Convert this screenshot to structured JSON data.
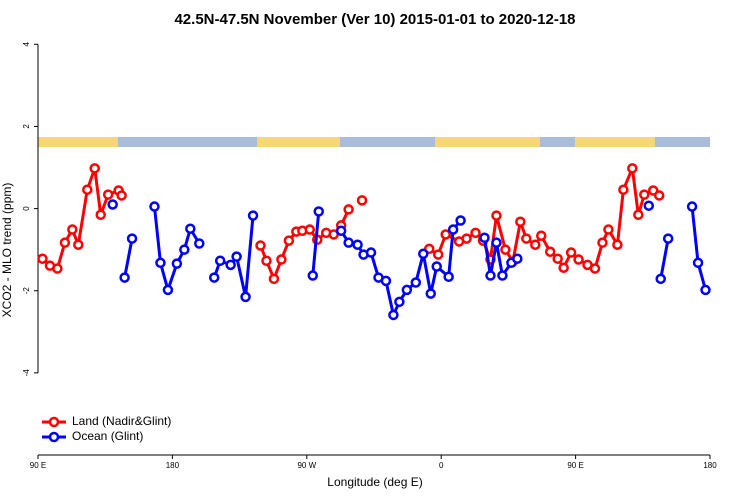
{
  "chart_data": {
    "type": "line",
    "title": "42.5N-47.5N November (Ver 10)   2015-01-01 to 2020-12-18",
    "x_label": "Longitude (deg E)",
    "y_label": "XCO2 - MLO trend (ppm)",
    "xlim": [
      90,
      540
    ],
    "ylim": [
      -6,
      4.3
    ],
    "xticks": [
      {
        "value": 90,
        "label": "90 E"
      },
      180,
      {
        "value": 270,
        "label": "90 W"
      },
      {
        "value": 360,
        "label": "0"
      },
      {
        "value": 450,
        "label": "90 E"
      },
      {
        "value": 540,
        "label": "180"
      }
    ],
    "yticks": [
      -4,
      -2,
      0,
      2,
      4
    ],
    "legend": "bottom-left",
    "series": [
      {
        "name": "Land (Nadir&Glint)",
        "color": "#ff0000",
        "x": [
          93,
          98,
          103,
          108,
          113,
          117,
          123,
          128,
          132,
          137,
          144,
          146,
          null,
          239,
          243,
          248,
          253,
          258,
          263,
          267,
          272,
          277,
          283,
          288,
          293,
          298,
          null,
          307,
          null,
          352,
          358,
          363,
          372,
          377,
          383,
          388,
          393,
          397,
          403,
          408,
          413,
          417,
          423,
          427,
          433,
          438,
          442,
          447,
          452,
          458,
          463,
          468,
          472,
          478,
          482,
          488,
          492,
          496,
          502,
          506
        ],
        "values": [
          -1.22,
          -1.39,
          -1.46,
          -0.83,
          -0.51,
          -0.88,
          0.46,
          0.98,
          -0.15,
          0.34,
          0.44,
          0.32,
          null,
          -0.9,
          -1.27,
          -1.71,
          -1.24,
          -0.78,
          -0.56,
          -0.54,
          -0.51,
          -0.76,
          -0.59,
          -0.63,
          -0.41,
          -0.02,
          null,
          0.2,
          null,
          -0.98,
          -1.12,
          -0.63,
          -0.8,
          -0.73,
          -0.59,
          -0.78,
          -1.24,
          -0.17,
          -1.0,
          -1.29,
          -0.32,
          -0.73,
          -0.88,
          -0.66,
          -1.05,
          -1.22,
          -1.44,
          -1.07,
          -1.24,
          -1.37,
          -1.46,
          -0.83,
          -0.51,
          -0.88,
          0.46,
          0.98,
          -0.15,
          0.34,
          0.44,
          0.32
        ]
      },
      {
        "name": "Ocean (Glint)",
        "color": "#0000ff",
        "x": [
          140,
          null,
          148,
          153,
          null,
          168,
          172,
          177,
          183,
          188,
          192,
          198,
          null,
          208,
          212,
          219,
          223,
          229,
          234,
          null,
          274,
          278,
          null,
          293,
          298,
          304,
          308,
          313,
          318,
          323,
          328,
          332,
          337,
          343,
          348,
          353,
          357,
          365,
          368,
          373,
          null,
          389,
          393,
          397,
          401,
          407,
          411,
          null,
          499,
          null,
          507,
          512,
          null,
          528,
          532,
          537
        ],
        "values": [
          0.1,
          null,
          -1.68,
          -0.73,
          null,
          0.05,
          -1.32,
          -1.98,
          -1.34,
          -1.0,
          -0.49,
          -0.85,
          null,
          -1.68,
          -1.27,
          -1.37,
          -1.17,
          -2.15,
          -0.17,
          null,
          -1.63,
          -0.07,
          null,
          -0.54,
          -0.83,
          -0.88,
          -1.12,
          -1.07,
          -1.68,
          -1.76,
          -2.59,
          -2.27,
          -1.98,
          -1.8,
          -1.1,
          -2.07,
          -1.41,
          -1.66,
          -0.51,
          -0.29,
          null,
          -0.71,
          -1.63,
          -0.83,
          -1.63,
          -1.32,
          -1.22,
          null,
          0.07,
          null,
          -1.71,
          -0.73,
          null,
          0.05,
          -1.32,
          -1.98
        ]
      }
    ]
  }
}
